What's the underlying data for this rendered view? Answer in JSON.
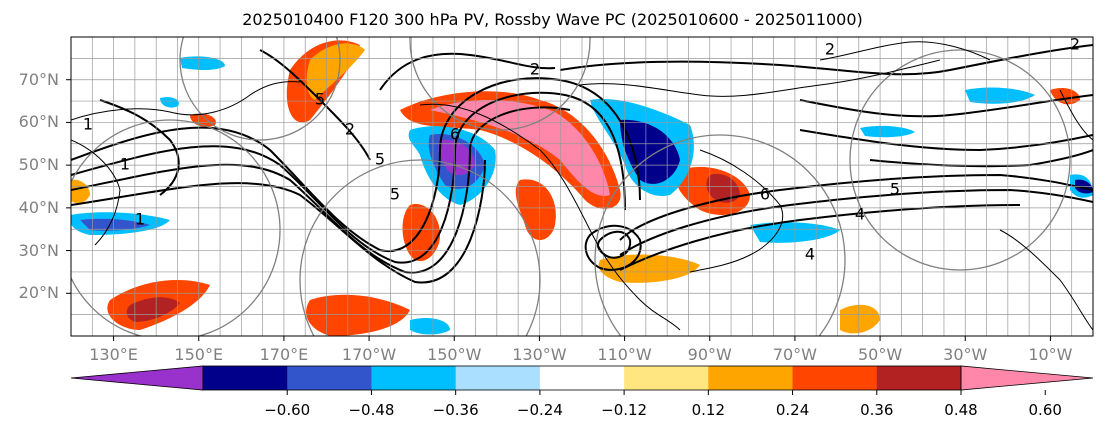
{
  "title": "2025010400 F120 300 hPa PV, Rossby Wave PC (2025010600 - 2025011000)",
  "map": {
    "lat_labels": [
      "70°N",
      "60°N",
      "50°N",
      "40°N",
      "30°N",
      "20°N"
    ],
    "lat_values": [
      70,
      60,
      50,
      40,
      30,
      20
    ],
    "lon_labels": [
      "130°E",
      "150°E",
      "170°E",
      "170°W",
      "150°W",
      "130°W",
      "110°W",
      "90°W",
      "70°W",
      "50°W",
      "30°W",
      "10°W"
    ],
    "lon_values": [
      130,
      150,
      170,
      190,
      210,
      230,
      250,
      270,
      290,
      310,
      330,
      350
    ],
    "lon_range": [
      120,
      360
    ],
    "lat_range": [
      10,
      80
    ],
    "contour_labels": [
      "2",
      "2",
      "2",
      "1",
      "1",
      "1",
      "2",
      "5",
      "5",
      "5",
      "5",
      "4",
      "4",
      "6",
      "6"
    ]
  },
  "colorbar": {
    "tick_labels": [
      "−0.60",
      "−0.48",
      "−0.36",
      "−0.24",
      "−0.12",
      "0.12",
      "0.24",
      "0.36",
      "0.48",
      "0.60"
    ],
    "tick_values": [
      -0.6,
      -0.48,
      -0.36,
      -0.24,
      -0.12,
      0.12,
      0.24,
      0.36,
      0.48,
      0.6
    ],
    "colors": [
      "#9932cc",
      "#00008b",
      "#3355cc",
      "#00bfff",
      "#aadfff",
      "#ffffff",
      "#ffe680",
      "#ffa500",
      "#ff4500",
      "#b22222",
      "#ff88aa"
    ]
  },
  "colors": {
    "contour": "#000000",
    "coast": "#000000",
    "grid": "#999999",
    "circles": "#808080"
  }
}
